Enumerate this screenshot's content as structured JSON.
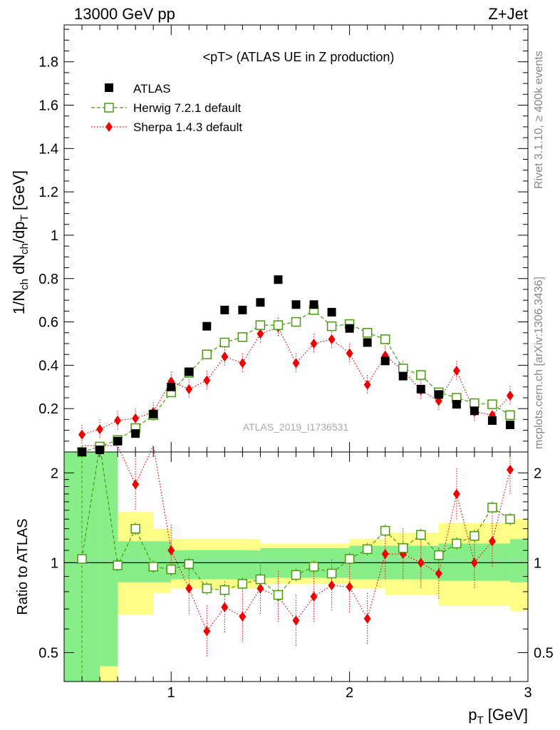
{
  "header": {
    "left": "13000 GeV pp",
    "right": "Z+Jet"
  },
  "side_labels": {
    "rivet": "Rivet 3.1.10, ≥ 400k events",
    "mcplots": "mcplots.cern.ch [arXiv:1306.3436]"
  },
  "chart_data": {
    "type": "scatter",
    "title": "<pT> (ATLAS UE in Z production)",
    "watermark": "ATLAS_2019_I1736531",
    "xlabel": "p_T [GeV]",
    "ylabel": "1/N_ch dN_ch/dp_T [GeV]",
    "ratio_ylabel": "Ratio to ATLAS",
    "xlim": [
      0.4,
      3.0
    ],
    "ylim": [
      0,
      1.97
    ],
    "ratio_ylim": [
      0.4,
      2.35
    ],
    "ratio_log": true,
    "x_ticks": [
      1,
      2,
      3
    ],
    "y_ticks": [
      0.2,
      0.4,
      0.6,
      0.8,
      1,
      1.2,
      1.4,
      1.6,
      1.8
    ],
    "ratio_ticks": [
      0.5,
      1,
      2
    ],
    "x": [
      0.5,
      0.6,
      0.7,
      0.8,
      0.9,
      1.0,
      1.1,
      1.2,
      1.3,
      1.4,
      1.5,
      1.6,
      1.7,
      1.8,
      1.9,
      2.0,
      2.1,
      2.2,
      2.3,
      2.4,
      2.5,
      2.6,
      2.7,
      2.8,
      2.9
    ],
    "series": [
      {
        "name": "ATLAS",
        "values": [
          0.0,
          0.01,
          0.05,
          0.085,
          0.175,
          0.3,
          0.37,
          0.58,
          0.655,
          0.655,
          0.69,
          0.795,
          0.68,
          0.68,
          0.645,
          0.57,
          0.505,
          0.42,
          0.35,
          0.29,
          0.265,
          0.22,
          0.19,
          0.145,
          0.125
        ],
        "color": "#000000"
      },
      {
        "name": "Herwig 7.2.1 default",
        "values": [
          0.0,
          0.025,
          0.055,
          0.11,
          0.17,
          0.275,
          0.365,
          0.45,
          0.505,
          0.53,
          0.585,
          0.585,
          0.6,
          0.655,
          0.58,
          0.59,
          0.55,
          0.52,
          0.385,
          0.355,
          0.275,
          0.25,
          0.225,
          0.22,
          0.17
        ],
        "ratio": [
          1.03,
          2.7,
          0.98,
          1.3,
          0.97,
          0.95,
          0.99,
          0.82,
          0.81,
          0.85,
          0.88,
          0.78,
          0.91,
          0.97,
          0.92,
          1.03,
          1.11,
          1.28,
          1.12,
          1.24,
          1.06,
          1.16,
          1.23,
          1.53,
          1.4
        ],
        "color": "#4a9a10"
      },
      {
        "name": "Sherpa 1.4.3 default",
        "values": [
          0.08,
          0.105,
          0.145,
          0.155,
          0.185,
          0.325,
          0.29,
          0.33,
          0.44,
          0.41,
          0.545,
          0.575,
          0.41,
          0.5,
          0.52,
          0.455,
          0.31,
          0.445,
          0.375,
          0.285,
          0.235,
          0.375,
          0.185,
          0.17,
          0.26
        ],
        "ratio": [
          2.9,
          2.9,
          2.9,
          1.83,
          2.9,
          1.1,
          0.82,
          0.59,
          0.71,
          0.66,
          0.82,
          0.77,
          0.64,
          0.77,
          0.84,
          0.83,
          0.65,
          1.07,
          1.07,
          1.0,
          0.92,
          1.7,
          1.0,
          1.18,
          2.05
        ],
        "color": "#ee0000"
      }
    ],
    "bands": {
      "green": [
        [
          0.45,
          0.26,
          4.0
        ],
        [
          0.65,
          0.45,
          2.4
        ],
        [
          0.75,
          0.86,
          1.18
        ],
        [
          1.05,
          0.88,
          1.1
        ],
        [
          1.55,
          0.89,
          1.12
        ],
        [
          2.05,
          0.88,
          1.14
        ],
        [
          2.55,
          0.87,
          1.16
        ],
        [
          2.95,
          0.86,
          1.2
        ]
      ],
      "yellow": [
        [
          0.45,
          0.26,
          4.0
        ],
        [
          0.65,
          0.38,
          2.4
        ],
        [
          0.75,
          0.67,
          1.48
        ],
        [
          0.95,
          0.79,
          1.3
        ],
        [
          1.05,
          0.82,
          1.2
        ],
        [
          1.55,
          0.85,
          1.16
        ],
        [
          2.05,
          0.82,
          1.2
        ],
        [
          2.25,
          0.78,
          1.26
        ],
        [
          2.55,
          0.72,
          1.36
        ],
        [
          2.95,
          0.69,
          1.4
        ]
      ]
    },
    "legend_position": "top-left"
  }
}
